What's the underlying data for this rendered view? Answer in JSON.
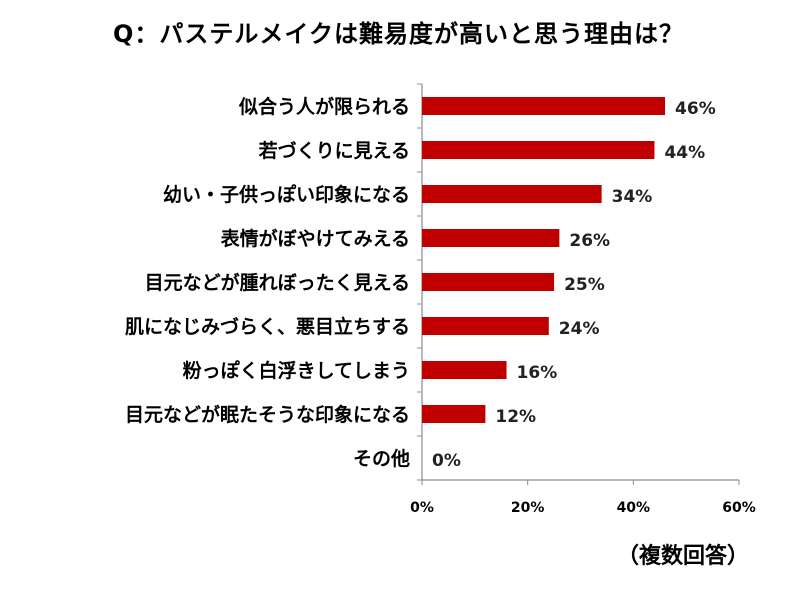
{
  "title": "Q：パステルメイクは難易度が高いと思う理由は？",
  "note": "（複数回答）",
  "chart_data": {
    "type": "bar",
    "orientation": "horizontal",
    "categories": [
      "似合う人が限られる",
      "若づくりに見える",
      "幼い・子供っぽい印象になる",
      "表情がぼやけてみえる",
      "目元などが腫れぼったく見える",
      "肌になじみづらく、悪目立ちする",
      "粉っぽく白浮きしてしまう",
      "目元などが眠たそうな印象になる",
      "その他"
    ],
    "values": [
      46,
      44,
      34,
      26,
      25,
      24,
      16,
      12,
      0
    ],
    "data_labels": [
      "46%",
      "44%",
      "34%",
      "26%",
      "25%",
      "24%",
      "16%",
      "12%",
      "0%"
    ],
    "xlim": [
      0,
      60
    ],
    "xticks": [
      0,
      20,
      40,
      60
    ],
    "xtick_labels": [
      "0%",
      "20%",
      "40%",
      "60%"
    ],
    "bar_color": "#c00000",
    "grid": false
  }
}
